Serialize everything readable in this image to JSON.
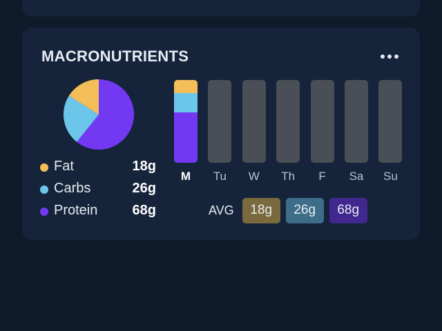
{
  "card": {
    "title": "MACRONUTRIENTS"
  },
  "icons": {
    "more": "more-horizontal-icon"
  },
  "colors": {
    "fat": "#f4bf59",
    "carbs": "#6cc6ea",
    "protein": "#7238f2",
    "empty_bar": "#4a4e56"
  },
  "macros": [
    {
      "name": "Fat",
      "value_text": "18g",
      "grams": 18,
      "color": "#f4bf59"
    },
    {
      "name": "Carbs",
      "value_text": "26g",
      "grams": 26,
      "color": "#6cc6ea"
    },
    {
      "name": "Protein",
      "value_text": "68g",
      "grams": 68,
      "color": "#7238f2"
    }
  ],
  "week": {
    "days": [
      "M",
      "Tu",
      "W",
      "Th",
      "F",
      "Sa",
      "Su"
    ],
    "selected": "M",
    "logged": {
      "M": {
        "fat": 18,
        "carbs": 26,
        "protein": 68
      }
    }
  },
  "average": {
    "label": "AVG",
    "values": [
      {
        "text": "18g",
        "bg": "#7a6a3d"
      },
      {
        "text": "26g",
        "bg": "#3e6d89"
      },
      {
        "text": "68g",
        "bg": "#40288e"
      }
    ]
  }
}
